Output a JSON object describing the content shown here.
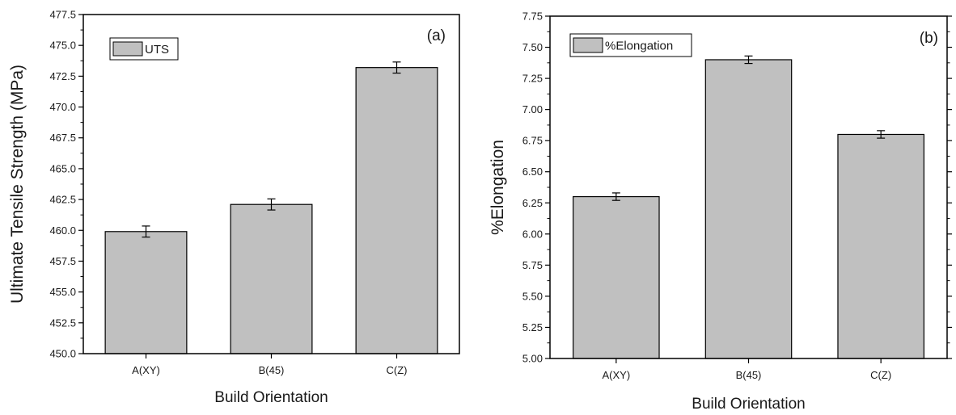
{
  "chart_data": [
    {
      "type": "bar",
      "panel_label": "(a)",
      "categories": [
        "A(XY)",
        "B(45)",
        "C(Z)"
      ],
      "series": [
        {
          "name": "UTS",
          "values": [
            459.9,
            462.1,
            473.2
          ],
          "errors": [
            0.45,
            0.45,
            0.45
          ]
        }
      ],
      "xlabel": "Build Orientation",
      "ylabel": "Ultimate Tensile Strength (MPa)",
      "ylim": [
        450.0,
        477.5
      ],
      "yticks": [
        "450.0",
        "452.5",
        "455.0",
        "457.5",
        "460.0",
        "462.5",
        "465.0",
        "467.5",
        "470.0",
        "472.5",
        "475.0",
        "477.5"
      ],
      "grid": false,
      "legend": "top-left",
      "bar_color": "#c0c0c0"
    },
    {
      "type": "bar",
      "panel_label": "(b)",
      "categories": [
        "A(XY)",
        "B(45)",
        "C(Z)"
      ],
      "series": [
        {
          "name": "%Elongation",
          "values": [
            6.3,
            7.4,
            6.8
          ],
          "errors": [
            0.03,
            0.03,
            0.03
          ]
        }
      ],
      "xlabel": "Build Orientation",
      "ylabel": "%Elongation",
      "ylim": [
        5.0,
        7.75
      ],
      "yticks": [
        "5.00",
        "5.25",
        "5.50",
        "5.75",
        "6.00",
        "6.25",
        "6.50",
        "6.75",
        "7.00",
        "7.25",
        "7.50",
        "7.75"
      ],
      "grid": false,
      "legend": "top-left",
      "bar_color": "#c0c0c0"
    }
  ]
}
